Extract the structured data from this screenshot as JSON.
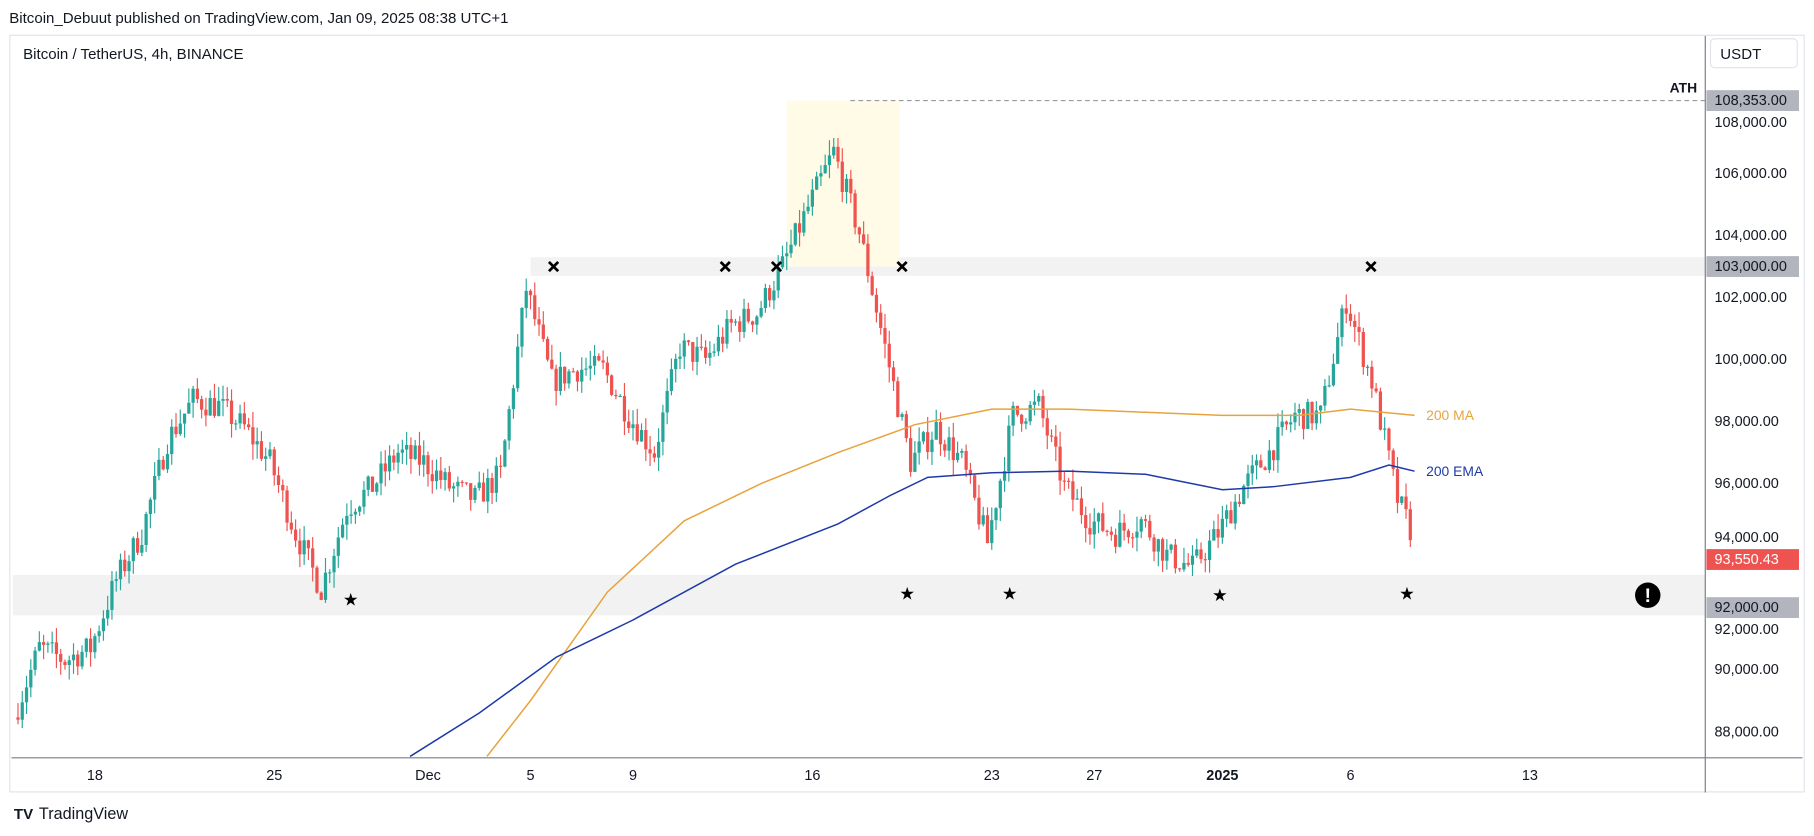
{
  "header": {
    "published": "Bitcoin_Debuut published on TradingView.com, Jan 09, 2025 08:38 UTC+1",
    "symbol": "Bitcoin / TetherUS, 4h, BINANCE"
  },
  "footer": {
    "brand": "TradingView"
  },
  "currency_button": "USDT",
  "colors": {
    "up": "#26a69a",
    "down": "#ef5350",
    "ma": "#e8a33d",
    "ema": "#1e3aa8",
    "zone": "#f2f2f2",
    "highlight": "#fffbe6"
  },
  "chart_data": {
    "type": "candlestick",
    "title": "Bitcoin / TetherUS, 4h, BINANCE",
    "ylim": [
      87200,
      108800
    ],
    "y_ticks": [
      "108,000.00",
      "106,000.00",
      "104,000.00",
      "102,000.00",
      "100,000.00",
      "98,000.00",
      "96,000.00",
      "94,000.00",
      "92,000.00",
      "90,000.00",
      "88,000.00"
    ],
    "y_tick_values": [
      108000,
      106000,
      104000,
      102000,
      100000,
      98000,
      96000,
      94000,
      92000,
      90000,
      88000
    ],
    "x_ticks": [
      {
        "label": "18",
        "day": 0
      },
      {
        "label": "25",
        "day": 7
      },
      {
        "label": "Dec",
        "day": 13
      },
      {
        "label": "5",
        "day": 17
      },
      {
        "label": "9",
        "day": 21
      },
      {
        "label": "16",
        "day": 28
      },
      {
        "label": "23",
        "day": 35
      },
      {
        "label": "27",
        "day": 39
      },
      {
        "label": "2025",
        "day": 44
      },
      {
        "label": "6",
        "day": 49
      },
      {
        "label": "13",
        "day": 56
      }
    ],
    "daily_close_path": {
      "start_day": -3,
      "values": [
        88460,
        90700,
        90300,
        90700,
        92900,
        94400,
        97400,
        98700,
        98500,
        97800,
        96700,
        94400,
        92600,
        95200,
        95900,
        97000,
        96700,
        95900,
        95500,
        96300,
        102300,
        99300,
        99700,
        99700,
        98200,
        97000,
        100400,
        100000,
        101100,
        101500,
        103000,
        104900,
        106700,
        104100,
        100400,
        96700,
        97800,
        96700,
        94100,
        98200,
        98500,
        95900,
        94800,
        94400,
        94800,
        93700,
        93300,
        94400,
        95900,
        97000,
        98200,
        98200,
        101900,
        99300,
        95500,
        93550
      ]
    },
    "ma200": {
      "label": "200 MA",
      "points": [
        [
          15.3,
          87200
        ],
        [
          17,
          89000
        ],
        [
          20,
          92500
        ],
        [
          23,
          94800
        ],
        [
          26,
          96000
        ],
        [
          29,
          97000
        ],
        [
          32,
          97900
        ],
        [
          35,
          98400
        ],
        [
          38,
          98400
        ],
        [
          41,
          98300
        ],
        [
          44,
          98200
        ],
        [
          47,
          98200
        ],
        [
          49,
          98400
        ],
        [
          51.5,
          98200
        ]
      ]
    },
    "ema200": {
      "label": "200 EMA",
      "points": [
        [
          12.3,
          87200
        ],
        [
          15,
          88600
        ],
        [
          18,
          90400
        ],
        [
          21,
          91600
        ],
        [
          25,
          93400
        ],
        [
          29,
          94700
        ],
        [
          31,
          95600
        ],
        [
          32.5,
          96200
        ],
        [
          35,
          96350
        ],
        [
          38,
          96400
        ],
        [
          41,
          96300
        ],
        [
          44,
          95800
        ],
        [
          46,
          95900
        ],
        [
          49,
          96200
        ],
        [
          50.5,
          96600
        ],
        [
          51.5,
          96400
        ]
      ]
    },
    "current_price": {
      "value": 93550.43,
      "label": "93,550.43"
    },
    "levels": [
      {
        "label": "ATH",
        "value": 108353,
        "text": "108,353.00"
      },
      {
        "value": 103000,
        "text": "103,000.00"
      },
      {
        "value": 92000,
        "text": "92,000.00"
      }
    ],
    "zones": [
      {
        "from": 102700,
        "to": 103300,
        "start_day": 17
      },
      {
        "from": 91750,
        "to": 93050,
        "start_day": -3.2
      }
    ],
    "highlight": {
      "from_day": 27,
      "to_day": 31.4,
      "from": 103000,
      "to": 108353
    },
    "x_markers_days": [
      17.9,
      24.6,
      26.6,
      31.5,
      49.8
    ],
    "x_marker_price": 103000,
    "star_markers": [
      {
        "day": 9.98,
        "price": 92250
      },
      {
        "day": 31.7,
        "price": 92450
      },
      {
        "day": 35.7,
        "price": 92450
      },
      {
        "day": 43.9,
        "price": 92400
      },
      {
        "day": 51.2,
        "price": 92450
      }
    ],
    "alert_marker": {
      "day": 60.6,
      "price": 92400
    }
  }
}
